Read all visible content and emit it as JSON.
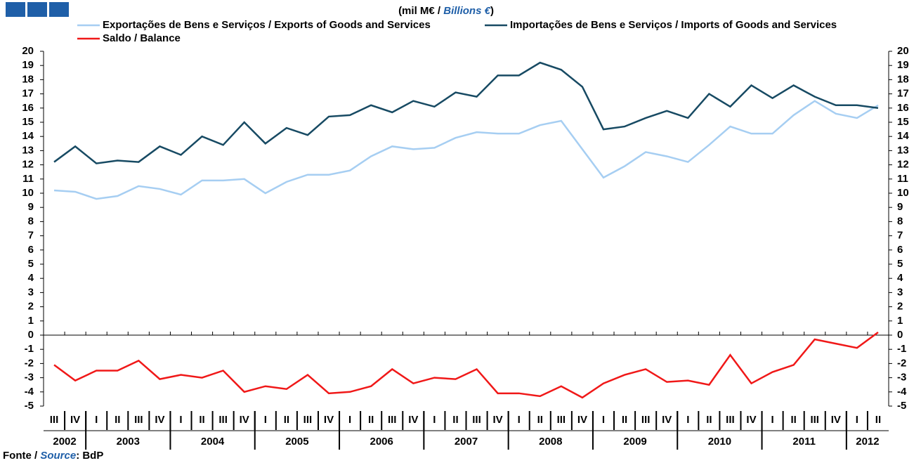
{
  "chart_data": {
    "type": "line",
    "title": [
      "(mil M€ / ",
      "Billions €",
      ")"
    ],
    "source": [
      "Fonte / ",
      "Source",
      ": BdP"
    ],
    "categories": [
      "III",
      "IV",
      "I",
      "II",
      "III",
      "IV",
      "I",
      "II",
      "III",
      "IV",
      "I",
      "II",
      "III",
      "IV",
      "I",
      "II",
      "III",
      "IV",
      "I",
      "II",
      "III",
      "IV",
      "I",
      "II",
      "III",
      "IV",
      "I",
      "II",
      "III",
      "IV",
      "I",
      "II",
      "III",
      "IV",
      "I",
      "II",
      "III",
      "IV",
      "I",
      "II"
    ],
    "years": [
      "2002",
      "2003",
      "2004",
      "2005",
      "2006",
      "2007",
      "2008",
      "2009",
      "2010",
      "2011",
      "2012"
    ],
    "series": [
      {
        "name": "Exportações de Bens e Serviços / Exports of Goods and Services",
        "color": "#a6cef2",
        "values": [
          10.2,
          10.1,
          9.6,
          9.8,
          10.5,
          10.3,
          9.9,
          10.9,
          10.9,
          11.0,
          10.0,
          10.8,
          11.3,
          11.3,
          11.6,
          12.6,
          13.3,
          13.1,
          13.2,
          13.9,
          14.3,
          14.2,
          14.2,
          14.8,
          15.1,
          13.1,
          11.1,
          11.9,
          12.9,
          12.6,
          12.2,
          13.4,
          14.7,
          14.2,
          14.2,
          15.5,
          16.5,
          15.6,
          15.3,
          16.2
        ]
      },
      {
        "name": "Importações de Bens e Serviços / Imports of Goods and Services",
        "color": "#174a63",
        "values": [
          12.2,
          13.3,
          12.1,
          12.3,
          12.2,
          13.3,
          12.7,
          14.0,
          13.4,
          15.0,
          13.5,
          14.6,
          14.1,
          15.4,
          15.5,
          16.2,
          15.7,
          16.5,
          16.1,
          17.1,
          16.8,
          18.3,
          18.3,
          19.2,
          18.7,
          17.5,
          14.5,
          14.7,
          15.3,
          15.8,
          15.3,
          17.0,
          16.1,
          17.6,
          16.7,
          17.6,
          16.8,
          16.2,
          16.2,
          16.0
        ]
      },
      {
        "name": "Saldo / Balance",
        "color": "#f01818",
        "values": [
          -2.1,
          -3.2,
          -2.5,
          -2.5,
          -1.8,
          -3.1,
          -2.8,
          -3.0,
          -2.5,
          -4.0,
          -3.6,
          -3.8,
          -2.8,
          -4.1,
          -4.0,
          -3.6,
          -2.4,
          -3.4,
          -3.0,
          -3.1,
          -2.4,
          -4.1,
          -4.1,
          -4.3,
          -3.6,
          -4.4,
          -3.4,
          -2.8,
          -2.4,
          -3.3,
          -3.2,
          -3.5,
          -1.4,
          -3.4,
          -2.6,
          -2.1,
          -0.3,
          -0.6,
          -0.9,
          0.2
        ]
      }
    ],
    "ylim": [
      -5,
      20
    ],
    "yticks": [
      -5,
      -4,
      -3,
      -2,
      -1,
      0,
      1,
      2,
      3,
      4,
      5,
      6,
      7,
      8,
      9,
      10,
      11,
      12,
      13,
      14,
      15,
      16,
      17,
      18,
      19,
      20
    ]
  }
}
